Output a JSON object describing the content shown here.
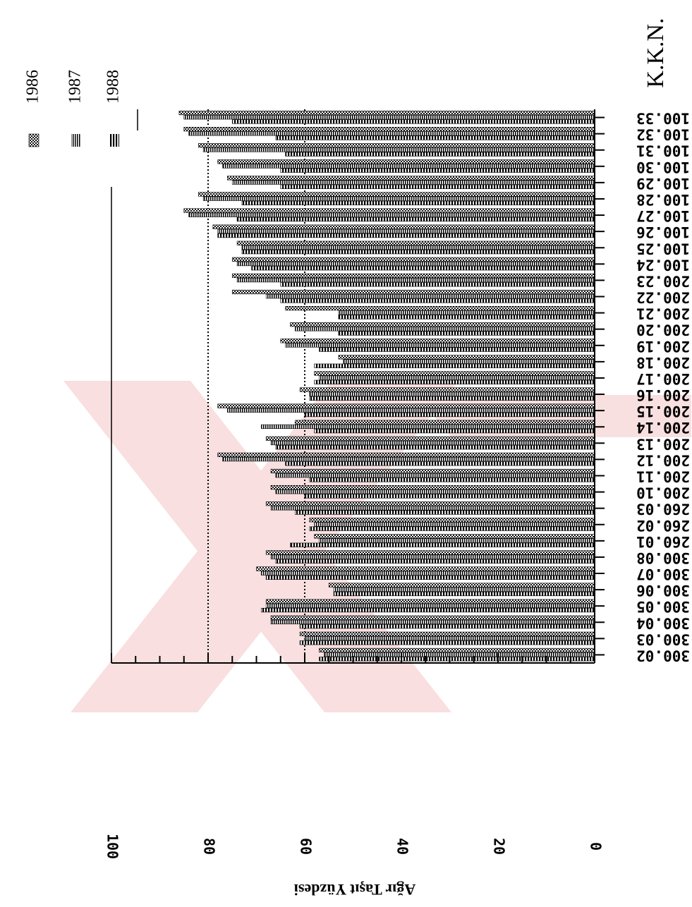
{
  "chart_data": {
    "type": "bar",
    "orientation": "horizontal, figure rotated 90 degrees clockwise",
    "title": "K.K.N.",
    "ylabel": "Ağır Taşıt Yüzdesi",
    "ylim": [
      0,
      100
    ],
    "yticks": [
      "0",
      "20",
      "40",
      "60",
      "80",
      "100"
    ],
    "grid": "dotted lines at 60 and 80",
    "legend_position": "top",
    "categories": [
      "300.02",
      "300.03",
      "300.04",
      "300.05",
      "300.06",
      "300.07",
      "300.08",
      "260.01",
      "260.02",
      "260.03",
      "200.10",
      "200.11",
      "200.12",
      "200.13",
      "200.14",
      "200.15",
      "200.16",
      "200.17",
      "200.18",
      "200.19",
      "200.20",
      "200.21",
      "200.22",
      "200.23",
      "100.24",
      "100.25",
      "100.26",
      "100.27",
      "100.28",
      "100.29",
      "100.30",
      "100.31",
      "100.32",
      "100.33"
    ],
    "series": [
      {
        "name": "1986",
        "pattern": "dots",
        "values": [
          57,
          61,
          67,
          68,
          55,
          70,
          68,
          58,
          59,
          68,
          67,
          67,
          78,
          68,
          62,
          78,
          61,
          58,
          53,
          65,
          63,
          64,
          75,
          75,
          75,
          74,
          79,
          85,
          82,
          76,
          78,
          82,
          85,
          86
        ]
      },
      {
        "name": "1987",
        "pattern": "double-lines",
        "values": [
          56,
          60,
          67,
          68,
          54,
          69,
          67,
          57,
          58,
          67,
          66,
          66,
          77,
          67,
          69,
          76,
          59,
          57,
          52,
          64,
          62,
          53,
          68,
          74,
          74,
          73,
          78,
          84,
          81,
          75,
          77,
          81,
          84,
          85
        ]
      },
      {
        "name": "1988",
        "pattern": "bars",
        "values": [
          57,
          61,
          61,
          69,
          54,
          68,
          66,
          63,
          59,
          62,
          60,
          59,
          64,
          66,
          58,
          60,
          59,
          58,
          58,
          57,
          53,
          53,
          65,
          65,
          71,
          73,
          78,
          74,
          73,
          65,
          65,
          64,
          66,
          75
        ]
      }
    ]
  }
}
